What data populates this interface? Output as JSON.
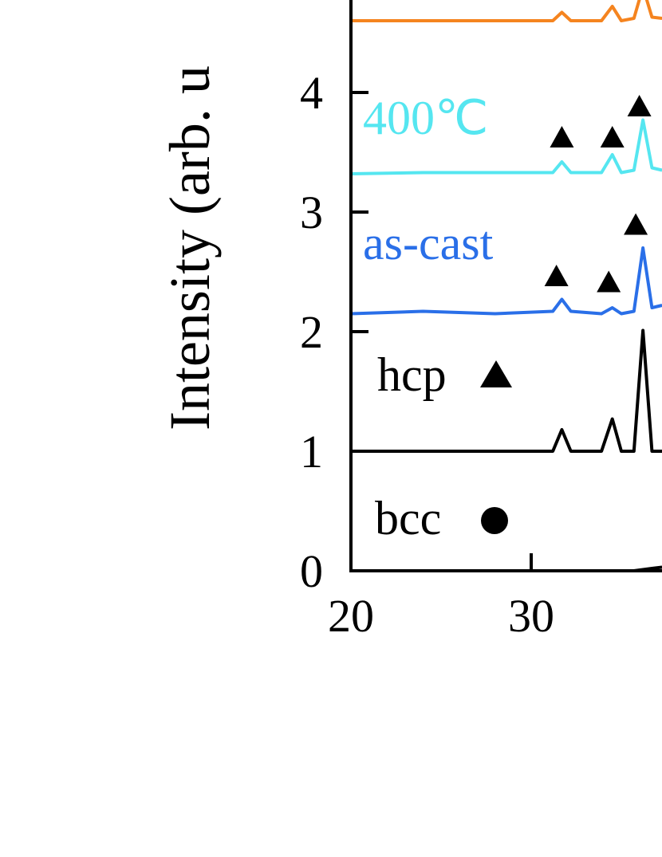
{
  "chart_data": {
    "type": "line",
    "y_label": "Intensity (arb. u",
    "xlim": [
      20,
      37.26
    ],
    "ylim": [
      0,
      4.77
    ],
    "xticks": [
      20,
      30
    ],
    "yticks": [
      0,
      1,
      2,
      3,
      4
    ],
    "x": [
      20,
      24,
      28,
      31.2,
      31.7,
      32.2,
      33.9,
      34.5,
      35.0,
      35.7,
      36.2,
      36.7,
      37.26
    ],
    "series": [
      {
        "name": "bcc",
        "color": "#000000",
        "values": [
          0,
          0,
          0,
          0,
          0,
          0,
          0,
          0,
          0,
          0,
          0.01,
          0.02,
          0.03
        ]
      },
      {
        "name": "hcp",
        "color": "#000000",
        "values": [
          1,
          1,
          1,
          1,
          1.18,
          1,
          1,
          1.27,
          1,
          1,
          2.01,
          1,
          1
        ]
      },
      {
        "name": "as-cast",
        "color": "#2a6fe8",
        "values": [
          2.15,
          2.17,
          2.15,
          2.17,
          2.27,
          2.17,
          2.15,
          2.2,
          2.15,
          2.17,
          2.7,
          2.2,
          2.22
        ]
      },
      {
        "name": "400℃",
        "color": "#55e6f0",
        "values": [
          3.32,
          3.33,
          3.33,
          3.33,
          3.42,
          3.33,
          3.33,
          3.48,
          3.33,
          3.35,
          3.77,
          3.37,
          3.35
        ]
      },
      {
        "color": "#f5841f",
        "values": [
          4.6,
          4.6,
          4.6,
          4.6,
          4.67,
          4.6,
          4.6,
          4.72,
          4.6,
          4.62,
          4.88,
          4.63,
          4.62
        ]
      }
    ],
    "peak_markers": [
      {
        "x": 31.7,
        "y": 3.62
      },
      {
        "x": 34.5,
        "y": 3.62
      },
      {
        "x": 36.0,
        "y": 3.88
      },
      {
        "x": 31.4,
        "y": 2.46
      },
      {
        "x": 34.3,
        "y": 2.41
      },
      {
        "x": 35.8,
        "y": 2.89
      }
    ]
  }
}
